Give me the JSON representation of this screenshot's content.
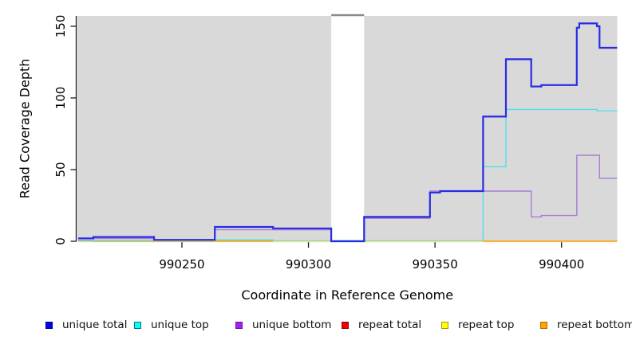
{
  "chart_data": {
    "type": "line",
    "variant": "step-coverage",
    "title": "",
    "xlabel": "Coordinate in Reference Genome",
    "ylabel": "Read Coverage Depth",
    "xlim": [
      990208.7,
      990422
    ],
    "ylim": [
      0,
      157.2
    ],
    "x_ticks": [
      990250,
      990300,
      990350,
      990400
    ],
    "x_tick_labels": [
      "990250",
      "990300",
      "990350",
      "990400"
    ],
    "y_ticks": [
      0,
      50,
      100,
      150
    ],
    "y_tick_labels": [
      "0",
      "50",
      "100",
      "150"
    ],
    "grid": false,
    "legend_position": "bottom",
    "plot_background": "#d9d9d9",
    "masked_region": {
      "x_start": 990309,
      "x_end": 990322,
      "fill": "#ffffff",
      "top_border_color": "#8a8a8a"
    },
    "baseline_blend": {
      "color": "#a9e3ab",
      "depth": 0,
      "segments": [
        [
          990286,
          990309
        ],
        [
          990322,
          990369
        ]
      ]
    },
    "series": [
      {
        "name": "unique total",
        "color": "#2a2ae6",
        "steps": [
          [
            990209,
            2
          ],
          [
            990215,
            3
          ],
          [
            990239,
            1
          ],
          [
            990263,
            10
          ],
          [
            990286,
            9
          ],
          [
            990309,
            0
          ],
          [
            990322,
            17
          ],
          [
            990348,
            34
          ],
          [
            990352,
            35
          ],
          [
            990369,
            87
          ],
          [
            990378,
            127
          ],
          [
            990388,
            108
          ],
          [
            990392,
            109
          ],
          [
            990406,
            149
          ],
          [
            990407,
            152
          ],
          [
            990414,
            150
          ],
          [
            990415,
            135
          ]
        ]
      },
      {
        "name": "unique top",
        "color": "#55dfe8",
        "steps": [
          [
            990209,
            0.5
          ],
          [
            990263,
            1
          ],
          [
            990286,
            0.5
          ],
          [
            990369,
            52
          ],
          [
            990378,
            92
          ],
          [
            990414,
            91
          ]
        ]
      },
      {
        "name": "unique bottom",
        "color": "#a87cd6",
        "steps": [
          [
            990209,
            2
          ],
          [
            990239,
            1
          ],
          [
            990263,
            8
          ],
          [
            990309,
            0
          ],
          [
            990322,
            16
          ],
          [
            990348,
            35
          ],
          [
            990388,
            17
          ],
          [
            990392,
            18
          ],
          [
            990406,
            60
          ],
          [
            990415,
            44
          ]
        ]
      },
      {
        "name": "repeat total",
        "color": "#e00000",
        "steps": [
          [
            990209,
            0
          ]
        ]
      },
      {
        "name": "repeat top",
        "color": "#ece79b",
        "steps": [
          [
            990209,
            0
          ]
        ]
      },
      {
        "name": "repeat bottom",
        "color": "#ff9f14",
        "steps": [
          [
            990209,
            0
          ]
        ],
        "visible_segments": [
          [
            990215,
            990286
          ],
          [
            990369,
            990422
          ]
        ]
      }
    ]
  },
  "legend": {
    "items": [
      {
        "label": "unique total",
        "fill": "#0202ee",
        "border": "#010180"
      },
      {
        "label": "unique top",
        "fill": "#00ffff",
        "border": "#077777"
      },
      {
        "label": "unique bottom",
        "fill": "#a020f0",
        "border": "#70149f"
      },
      {
        "label": "repeat total",
        "fill": "#f00000",
        "border": "#990000"
      },
      {
        "label": "repeat top",
        "fill": "#ffff00",
        "border": "#a0a000"
      },
      {
        "label": "repeat bottom",
        "fill": "#ffa500",
        "border": "#b06c00"
      }
    ]
  }
}
